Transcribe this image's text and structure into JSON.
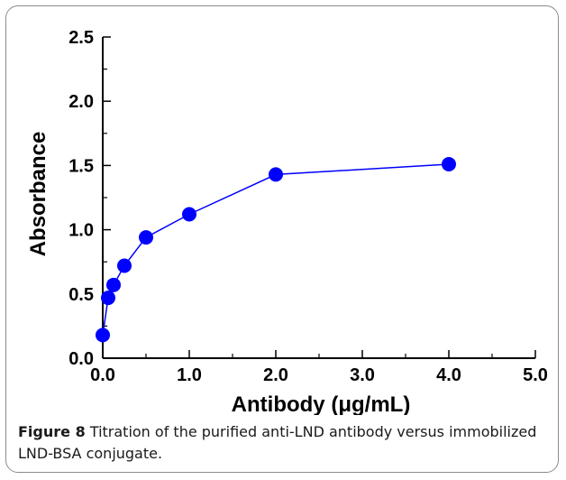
{
  "chart_data": {
    "type": "line",
    "title": "",
    "xlabel": "Antibody (μg/mL)",
    "ylabel": "Absorbance",
    "xlim": [
      0,
      5
    ],
    "ylim": [
      0,
      2.5
    ],
    "xticks": [
      "0.0",
      "1.0",
      "2.0",
      "3.0",
      "4.0",
      "5.0"
    ],
    "yticks": [
      "0.0",
      "0.5",
      "1.0",
      "1.5",
      "2.0",
      "2.5"
    ],
    "grid": false,
    "series": [
      {
        "x": [
          0.0,
          0.0625,
          0.125,
          0.25,
          0.5,
          1.0,
          2.0,
          4.0
        ],
        "y": [
          0.18,
          0.47,
          0.57,
          0.72,
          0.94,
          1.12,
          1.43,
          1.51
        ],
        "color": "#0000ff",
        "marker": "circle"
      }
    ]
  },
  "caption": {
    "label": "Figure 8",
    "text": " Titration of the purified anti-LND antibody versus immobilized LND-BSA conjugate."
  }
}
